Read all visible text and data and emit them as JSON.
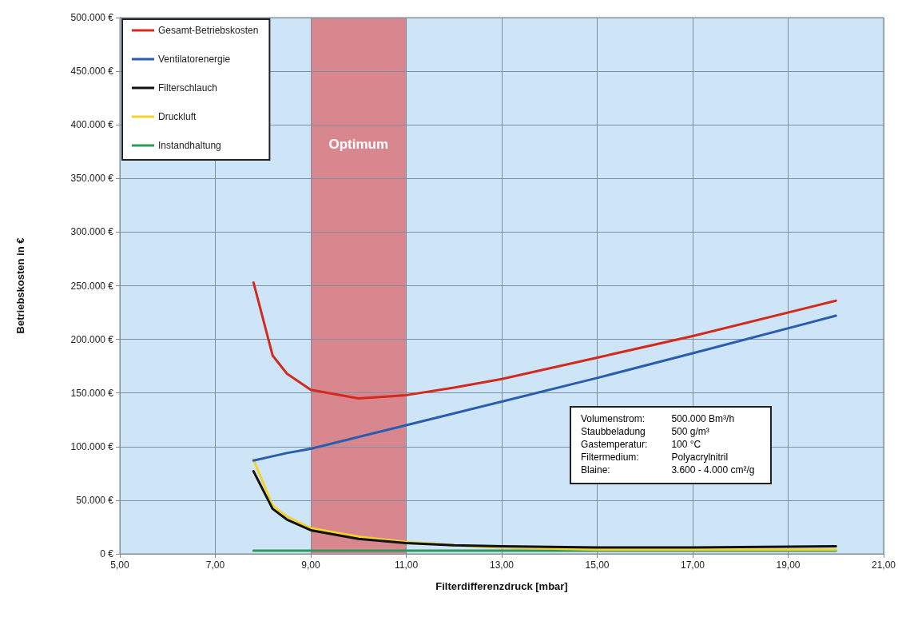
{
  "chart_data": {
    "type": "line",
    "xlabel": "Filterdifferenzdruck [mbar]",
    "ylabel": "Betriebskosten in €",
    "xlim": [
      5,
      21
    ],
    "xticks": [
      {
        "value": 5,
        "label": "5,00"
      },
      {
        "value": 7,
        "label": "7,00"
      },
      {
        "value": 9,
        "label": "9,00"
      },
      {
        "value": 11,
        "label": "11,00"
      },
      {
        "value": 13,
        "label": "13,00"
      },
      {
        "value": 15,
        "label": "15,00"
      },
      {
        "value": 17,
        "label": "17,00"
      },
      {
        "value": 19,
        "label": "19,00"
      },
      {
        "value": 21,
        "label": "21,00"
      }
    ],
    "ylim": [
      0,
      500000
    ],
    "yticks": [
      {
        "value": 0,
        "label": "0 €"
      },
      {
        "value": 50000,
        "label": "50.000 €"
      },
      {
        "value": 100000,
        "label": "100.000 €"
      },
      {
        "value": 150000,
        "label": "150.000 €"
      },
      {
        "value": 200000,
        "label": "200.000 €"
      },
      {
        "value": 250000,
        "label": "250.000 €"
      },
      {
        "value": 300000,
        "label": "300.000 €"
      },
      {
        "value": 350000,
        "label": "350.000 €"
      },
      {
        "value": 400000,
        "label": "400.000 €"
      },
      {
        "value": 450000,
        "label": "450.000 €"
      },
      {
        "value": 500000,
        "label": "500.000 €"
      }
    ],
    "x": [
      7.8,
      8.2,
      8.5,
      9,
      10,
      11,
      12,
      13,
      15,
      17,
      20
    ],
    "series": [
      {
        "name": "Gesamt-Betriebskosten",
        "color": "#d42a1e",
        "values": [
          253000,
          185000,
          168000,
          153000,
          145000,
          148000,
          155000,
          163000,
          183000,
          203000,
          236000
        ]
      },
      {
        "name": "Ventilatorenergie",
        "color": "#2a5db0",
        "values": [
          87000,
          91000,
          94000,
          98000,
          109000,
          120000,
          131000,
          142000,
          164000,
          187000,
          222000
        ]
      },
      {
        "name": "Filterschlauch",
        "color": "#111111",
        "values": [
          77000,
          42000,
          32000,
          22000,
          14000,
          10000,
          8000,
          7000,
          6000,
          6000,
          7000
        ]
      },
      {
        "name": "Druckluft",
        "color": "#f2d22e",
        "values": [
          88000,
          45000,
          35000,
          24000,
          16000,
          11000,
          8000,
          6000,
          4000,
          4000,
          4000
        ]
      },
      {
        "name": "Instandhaltung",
        "color": "#2e9a5a",
        "values": [
          3000,
          3000,
          3000,
          3000,
          3000,
          3000,
          3000,
          3000,
          3000,
          3000,
          3000
        ]
      }
    ],
    "bands": [
      {
        "axis": "x",
        "from": 9,
        "to": 11,
        "label": "Optimum",
        "color": "#d9878f"
      }
    ],
    "annotations": [
      "Volumenstrom:\t500.000 Bm³/h",
      "Staubbeladung\t500 g/m³",
      "Gastemperatur:\t100 °C",
      "Filtermedium:\tPolyacrylnitril",
      "Blaine:\t3.600 - 4.000 cm²/g"
    ],
    "grid": true,
    "legend": "top left",
    "marker": "none",
    "line_style": "solid"
  }
}
